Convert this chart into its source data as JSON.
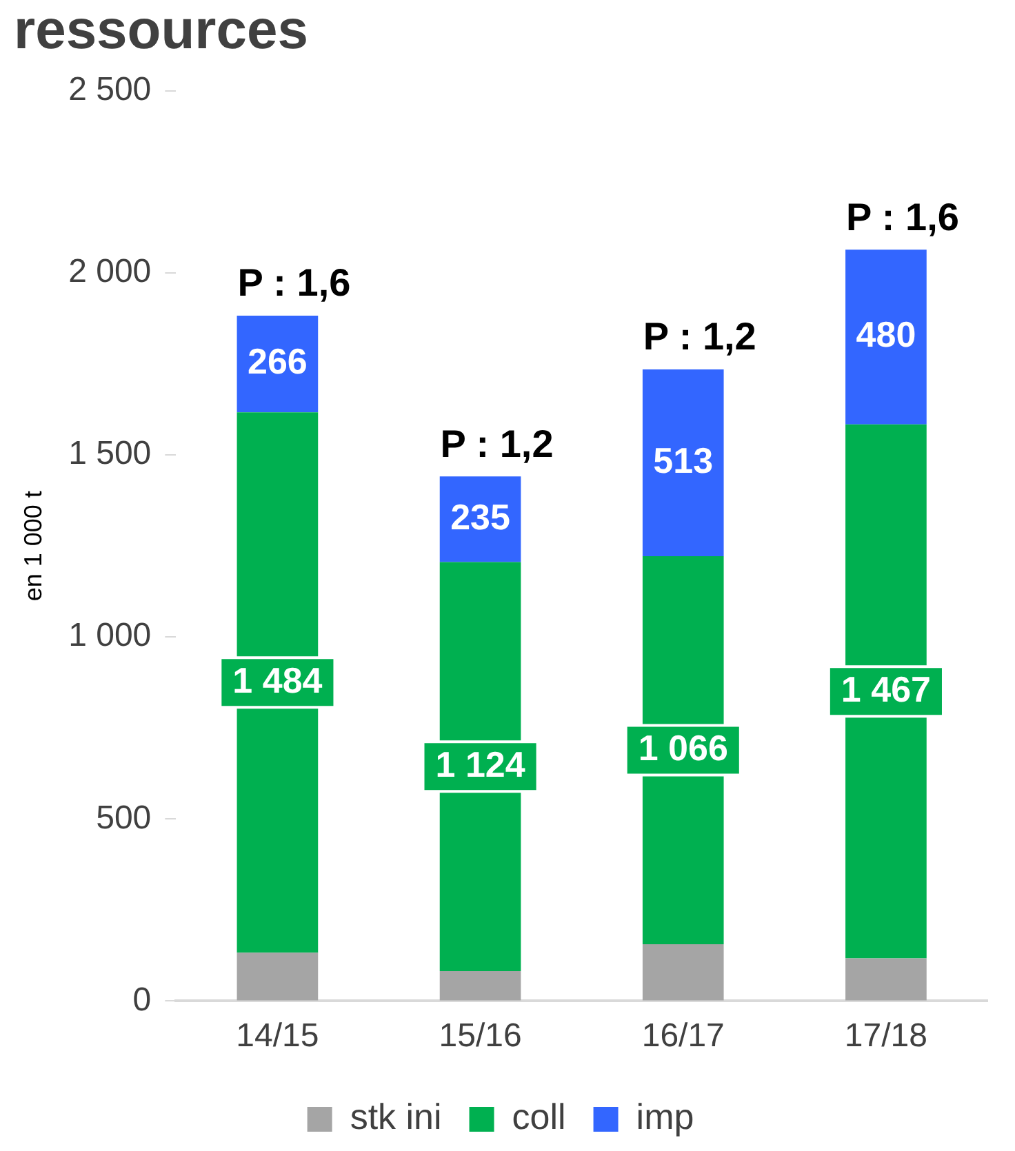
{
  "chart_data": {
    "type": "bar",
    "title": "ressources",
    "ylabel": "en 1 000 t",
    "stacked": true,
    "grid": false,
    "legend": "bottom",
    "categories": [
      "14/15",
      "15/16",
      "16/17",
      "17/18"
    ],
    "series": [
      {
        "name": "stk ini",
        "color": "#a5a5a5",
        "values": [
          133,
          82,
          156,
          117
        ]
      },
      {
        "name": "coll",
        "color": "#00b050",
        "values": [
          1484,
          1124,
          1066,
          1467
        ],
        "value_labels": [
          "1 484",
          "1 124",
          "1 066",
          "1 467"
        ]
      },
      {
        "name": "imp",
        "color": "#3366ff",
        "values": [
          266,
          235,
          513,
          480
        ],
        "value_labels": [
          "266",
          "235",
          "513",
          "480"
        ]
      }
    ],
    "ylim": [
      0,
      2500
    ],
    "yticks": [
      0,
      500,
      {
        "value": 1000,
        "label": "1 000"
      },
      {
        "value": 1500,
        "label": "1 500"
      },
      {
        "value": 2000,
        "label": "2 000"
      },
      {
        "value": 2500,
        "label": "2 500"
      }
    ],
    "annotations": [
      {
        "text": "P : 1,6",
        "x": "14/15",
        "y": 1883
      },
      {
        "text": "P : 1,2",
        "x": "15/16",
        "y": 1441
      },
      {
        "text": "P : 1,2",
        "x": "16/17",
        "y": 1735
      },
      {
        "text": "P : 1,6",
        "x": "17/18",
        "y": 2064
      }
    ]
  }
}
